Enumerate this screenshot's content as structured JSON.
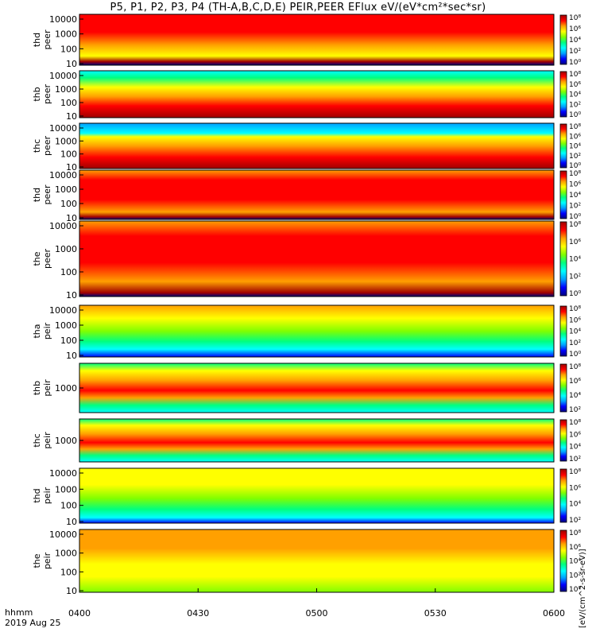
{
  "title": "P5, P1, P2, P3, P4 (TH-A,B,C,D,E) PEIR,PEER EFlux eV/(eV*cm²*sec*sr)",
  "time_labels": {
    "line1": "hhmm",
    "line2": "2019 Aug 25"
  },
  "colorbar_units": "[eV/(cm^2-s-sr-eV)]",
  "colorscale": [
    "#000080",
    "#0000ff",
    "#00a0ff",
    "#00ffff",
    "#00ff80",
    "#80ff00",
    "#ffff00",
    "#ffa000",
    "#ff0000",
    "#a00000"
  ],
  "chart_data": [
    {
      "type": "heatmap",
      "ylabel": [
        "thd",
        "peer"
      ],
      "yticks": [
        "10000",
        "1000",
        "100",
        "10"
      ],
      "y_log": true,
      "cb_ticks": [
        "10⁸",
        "10⁶",
        "10⁴",
        "10²",
        "10⁰"
      ],
      "x_categories": [
        "0400",
        "0430",
        "0500",
        "0530",
        "0600"
      ]
    },
    {
      "type": "heatmap",
      "ylabel": [
        "thb",
        "peer"
      ],
      "yticks": [
        "10000",
        "1000",
        "100",
        "10"
      ],
      "y_log": true,
      "cb_ticks": [
        "10⁸",
        "10⁶",
        "10⁴",
        "10²",
        "10⁰"
      ],
      "x_categories": [
        "0400",
        "0430",
        "0500",
        "0530",
        "0600"
      ]
    },
    {
      "type": "heatmap",
      "ylabel": [
        "thc",
        "peer"
      ],
      "yticks": [
        "10000",
        "1000",
        "100",
        "10"
      ],
      "y_log": true,
      "cb_ticks": [
        "10⁸",
        "10⁶",
        "10⁴",
        "10²",
        "10⁰"
      ],
      "x_categories": [
        "0400",
        "0430",
        "0500",
        "0530",
        "0600"
      ]
    },
    {
      "type": "heatmap",
      "ylabel": [
        "thd",
        "peer"
      ],
      "yticks": [
        "10000",
        "1000",
        "100",
        "10"
      ],
      "y_log": true,
      "cb_ticks": [
        "10⁸",
        "10⁶",
        "10⁴",
        "10²",
        "10⁰"
      ],
      "x_categories": [
        "0400",
        "0430",
        "0500",
        "0530",
        "0600"
      ]
    },
    {
      "type": "heatmap",
      "ylabel": [
        "the",
        "peer"
      ],
      "yticks": [
        "10000",
        "1000",
        "100",
        "10"
      ],
      "y_log": true,
      "cb_ticks": [
        "10⁸",
        "10⁶",
        "10⁴",
        "10²",
        "10⁰"
      ],
      "x_categories": [
        "0400",
        "0430",
        "0500",
        "0530",
        "0600"
      ]
    },
    {
      "type": "heatmap",
      "ylabel": [
        "tha",
        "peir"
      ],
      "yticks": [
        "10000",
        "1000",
        "100",
        "10"
      ],
      "y_log": true,
      "cb_ticks": [
        "10⁸",
        "10⁶",
        "10⁴",
        "10²",
        "10⁰"
      ],
      "x_categories": [
        "0400",
        "0430",
        "0500",
        "0530",
        "0600"
      ]
    },
    {
      "type": "heatmap",
      "ylabel": [
        "thb",
        "peir"
      ],
      "yticks": [
        "1000"
      ],
      "y_log": true,
      "cb_ticks": [
        "10⁸",
        "10⁶",
        "10⁴",
        "10²"
      ],
      "x_categories": [
        "0400",
        "0430",
        "0500",
        "0530",
        "0600"
      ]
    },
    {
      "type": "heatmap",
      "ylabel": [
        "thc",
        "peir"
      ],
      "yticks": [
        "1000"
      ],
      "y_log": true,
      "cb_ticks": [
        "10⁸",
        "10⁶",
        "10⁴",
        "10²"
      ],
      "x_categories": [
        "0400",
        "0430",
        "0500",
        "0530",
        "0600"
      ]
    },
    {
      "type": "heatmap",
      "ylabel": [
        "thd",
        "peir"
      ],
      "yticks": [
        "10000",
        "1000",
        "100",
        "10"
      ],
      "y_log": true,
      "cb_ticks": [
        "10⁸",
        "10⁶",
        "10⁴",
        "10²"
      ],
      "x_categories": [
        "0400",
        "0430",
        "0500",
        "0530",
        "0600"
      ]
    },
    {
      "type": "heatmap",
      "ylabel": [
        "the",
        "peir"
      ],
      "yticks": [
        "10000",
        "1000",
        "100",
        "10"
      ],
      "y_log": true,
      "cb_ticks": [
        "10⁸",
        "10⁶",
        "10⁴",
        "10²",
        "10⁰"
      ],
      "x_categories": [
        "0400",
        "0430",
        "0500",
        "0530",
        "0600"
      ]
    }
  ]
}
